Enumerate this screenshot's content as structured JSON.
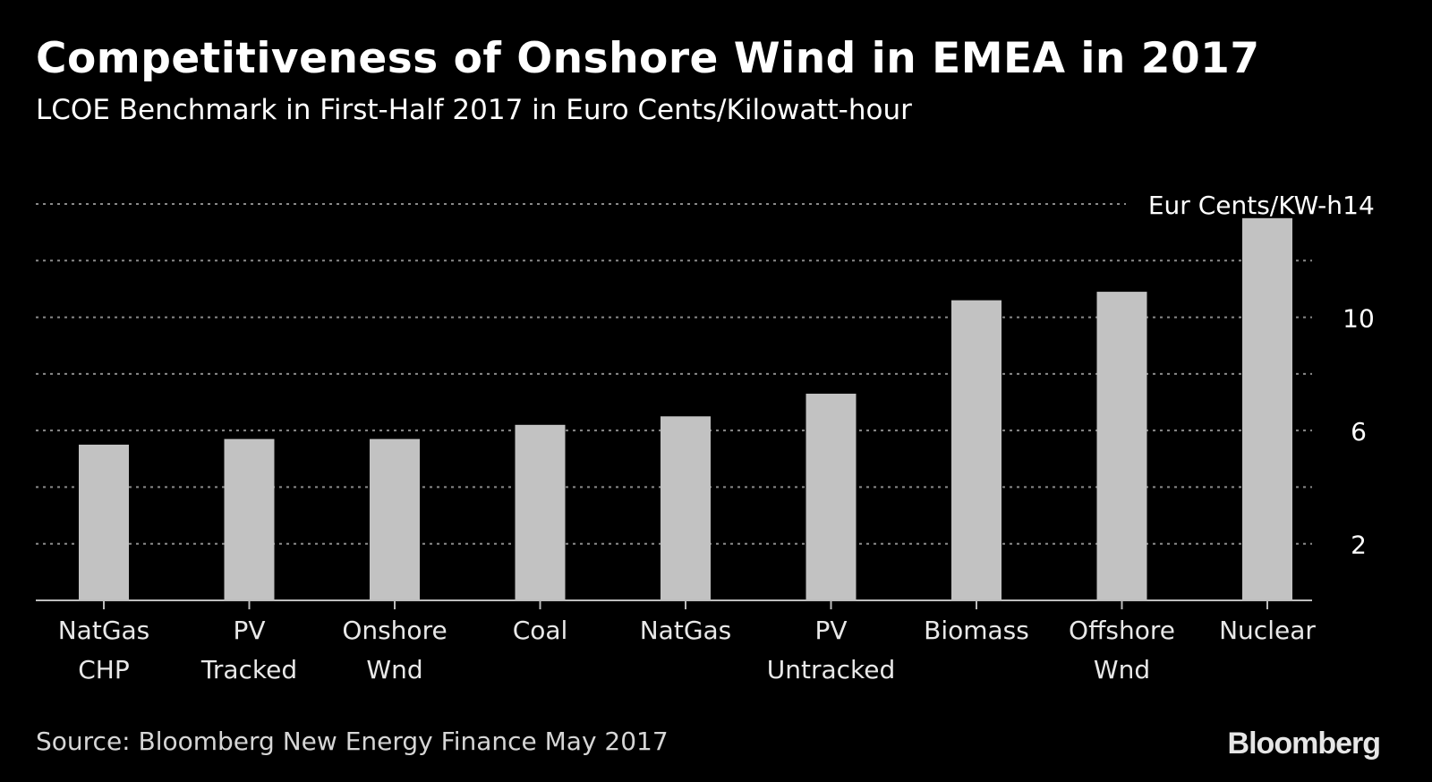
{
  "header": {
    "title": "Competitiveness of Onshore Wind in EMEA in 2017",
    "subtitle": "LCOE Benchmark in First-Half 2017 in Euro Cents/Kilowatt-hour"
  },
  "footer": {
    "source": "Source: Bloomberg New Energy Finance May 2017",
    "brand": "Bloomberg"
  },
  "colors": {
    "background": "#000000",
    "bar": "#c2c2c2",
    "gridline": "#8a8a8a",
    "axis": "#bdbdbd",
    "text": "#ffffff"
  },
  "chart_data": {
    "type": "bar",
    "title": "Competitiveness of Onshore Wind in EMEA in 2017",
    "subtitle": "LCOE Benchmark in First-Half 2017 in Euro Cents/Kilowatt-hour",
    "unit_label": "Eur Cents/KW-h",
    "categories": [
      [
        "NatGas",
        "CHP"
      ],
      [
        "PV",
        "Tracked"
      ],
      [
        "Onshore",
        "Wnd"
      ],
      [
        "Coal"
      ],
      [
        "NatGas"
      ],
      [
        "PV",
        "Untracked"
      ],
      [
        "Biomass"
      ],
      [
        "Offshore",
        "Wnd"
      ],
      [
        "Nuclear"
      ]
    ],
    "values": [
      5.5,
      5.7,
      5.7,
      6.2,
      6.5,
      7.3,
      10.6,
      10.9,
      13.5
    ],
    "ylim": [
      0,
      14
    ],
    "yticks": [
      2,
      6,
      10,
      14
    ],
    "gridlines": [
      2,
      4,
      6,
      8,
      10,
      12,
      14
    ],
    "grid": true,
    "y_axis_side": "right",
    "legend": "none"
  }
}
